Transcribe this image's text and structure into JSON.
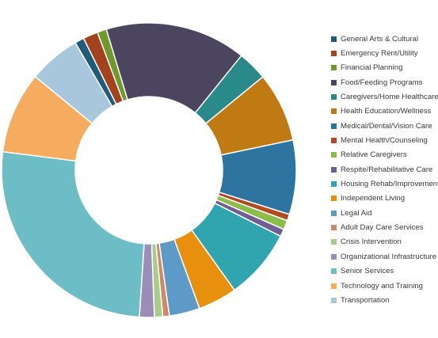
{
  "chart_data": {
    "type": "pie",
    "variant": "doughnut",
    "legend_position": "right",
    "categories": [
      "General Arts & Cultural",
      "Emergency Rent/Utility",
      "Financial Planning",
      "Food/Feeding Programs",
      "Caregivers/Home Healthcare",
      "Health Education/Wellness",
      "Medical/Dental/Vision Care",
      "Mental Health/Counseling",
      "Relative Caregivers",
      "Respite/Rehabilitative Care",
      "Housing Rehab/Improvement",
      "Independent Living",
      "Legal Aid",
      "Adult Day Care Services",
      "Crisis Intervention",
      "Organizational Infrastructure",
      "Senior Services",
      "Technology and Training",
      "Transportation"
    ],
    "values": [
      1.0,
      1.6,
      1.0,
      15.2,
      3.2,
      7.5,
      8.0,
      0.7,
      1.0,
      0.8,
      7.6,
      4.2,
      3.3,
      0.7,
      0.9,
      1.6,
      25.5,
      8.8,
      5.6
    ],
    "colors": [
      "#1f5b7a",
      "#a3421c",
      "#6e9a2c",
      "#4b4560",
      "#2a8a8a",
      "#c07a14",
      "#2e74a0",
      "#b44a22",
      "#8cbc4a",
      "#6e5e92",
      "#30a5b0",
      "#e8900e",
      "#5d9ac8",
      "#d08868",
      "#a8cc8a",
      "#9a8eb8",
      "#6cbdc6",
      "#f6ac5e",
      "#a8c6dc"
    ]
  }
}
